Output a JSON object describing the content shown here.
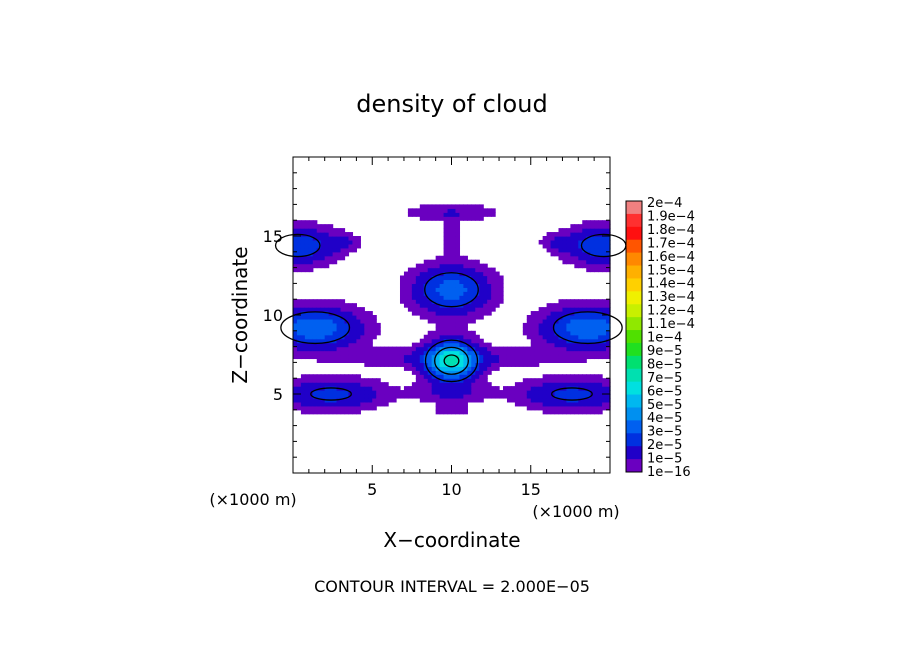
{
  "chart_data": {
    "type": "heatmap",
    "title": "density of cloud",
    "xlabel": "X−coordinate",
    "ylabel": "Z−coordinate",
    "x_unit_label": "(×1000 m)",
    "z_unit_label": "(×1000 m)",
    "xlim": [
      0,
      20
    ],
    "ylim": [
      0,
      20
    ],
    "x_ticks": [
      5,
      10,
      15
    ],
    "y_ticks": [
      5,
      10,
      15
    ],
    "grid": false,
    "legend_position": "right",
    "footer": "CONTOUR INTERVAL = 2.000E−05",
    "colorbar": {
      "labels": [
        "2e−4",
        "1.9e−4",
        "1.8e−4",
        "1.7e−4",
        "1.6e−4",
        "1.5e−4",
        "1.4e−4",
        "1.3e−4",
        "1.2e−4",
        "1.1e−4",
        "1e−4",
        "9e−5",
        "8e−5",
        "7e−5",
        "6e−5",
        "5e−5",
        "4e−5",
        "3e−5",
        "2e−5",
        "1e−5",
        "1e−16"
      ],
      "colors": [
        "#f08080",
        "#ff3030",
        "#ff1010",
        "#ff5500",
        "#ff8800",
        "#ffb000",
        "#ffd000",
        "#f0f000",
        "#c8f000",
        "#90e800",
        "#50e000",
        "#20e020",
        "#00e070",
        "#00e0b0",
        "#00e0e0",
        "#00b8f0",
        "#0090f0",
        "#0060f0",
        "#0030e0",
        "#2000c8",
        "#6a00c0"
      ]
    },
    "blobs": [
      {
        "cx": 0.3,
        "cz": 14.4,
        "rx": 2.2,
        "rz": 1.1,
        "peak": 3e-05
      },
      {
        "cx": 19.6,
        "cz": 14.4,
        "rx": 2.2,
        "rz": 1.1,
        "peak": 3e-05
      },
      {
        "cx": 3.2,
        "cz": 14.6,
        "rx": 1.0,
        "rz": 0.5,
        "peak": 1e-05
      },
      {
        "cx": 16.8,
        "cz": 14.6,
        "rx": 1.0,
        "rz": 0.5,
        "peak": 1e-05
      },
      {
        "cx": 10.0,
        "cz": 16.5,
        "rx": 2.8,
        "rz": 0.5,
        "peak": 1e-05
      },
      {
        "cx": 10.0,
        "cz": 15.0,
        "rx": 0.4,
        "rz": 1.2,
        "peak": 1e-05
      },
      {
        "cx": 10.0,
        "cz": 11.6,
        "rx": 2.2,
        "rz": 1.4,
        "peak": 3.6e-05
      },
      {
        "cx": 1.4,
        "cz": 9.2,
        "rx": 2.6,
        "rz": 1.2,
        "peak": 4e-05
      },
      {
        "cx": 18.6,
        "cz": 9.2,
        "rx": 2.6,
        "rz": 1.2,
        "peak": 4e-05
      },
      {
        "cx": 10.0,
        "cz": 7.3,
        "rx": 6.0,
        "rz": 0.6,
        "peak": 1.2e-05
      },
      {
        "cx": 10.0,
        "cz": 7.1,
        "rx": 1.5,
        "rz": 1.2,
        "peak": 6.6e-05
      },
      {
        "cx": 2.4,
        "cz": 5.0,
        "rx": 3.0,
        "rz": 0.9,
        "peak": 2.4e-05
      },
      {
        "cx": 17.6,
        "cz": 5.0,
        "rx": 3.0,
        "rz": 0.9,
        "peak": 2.4e-05
      },
      {
        "cx": 10.0,
        "cz": 5.1,
        "rx": 2.2,
        "rz": 0.6,
        "peak": 1.1e-05
      },
      {
        "cx": 10.0,
        "cz": 4.0,
        "rx": 1.0,
        "rz": 0.3,
        "peak": 1e-05
      }
    ]
  }
}
